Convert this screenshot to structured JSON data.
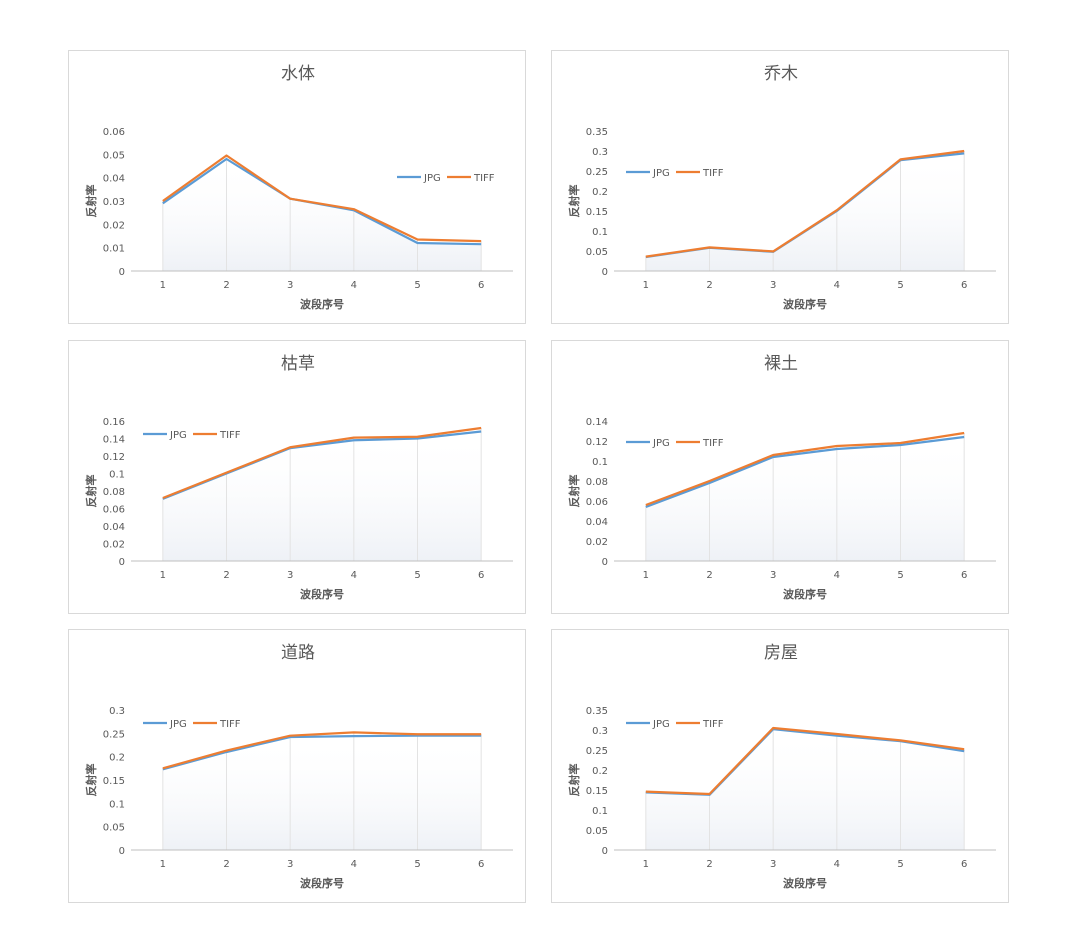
{
  "colors": {
    "jpg": "#5b9bd5",
    "tiff": "#ed7d31",
    "axis": "#bfbfbf",
    "text": "#595959",
    "title": "#595959",
    "fill": "#eef1f6"
  },
  "chart_data": [
    {
      "type": "line",
      "title": "水体",
      "xlabel": "波段序号",
      "ylabel": "反射率",
      "x": [
        "1",
        "2",
        "3",
        "4",
        "5",
        "6"
      ],
      "ylim": [
        0,
        0.06
      ],
      "yticks": [
        "0",
        "0.01",
        "0.02",
        "0.03",
        "0.04",
        "0.05",
        "0.06"
      ],
      "legend": "right",
      "series": [
        {
          "name": "JPG",
          "values": [
            0.029,
            0.048,
            0.031,
            0.026,
            0.012,
            0.0115
          ]
        },
        {
          "name": "TIFF",
          "values": [
            0.03,
            0.0495,
            0.031,
            0.0265,
            0.0135,
            0.0128
          ]
        }
      ]
    },
    {
      "type": "line",
      "title": "乔木",
      "xlabel": "波段序号",
      "ylabel": "反射率",
      "x": [
        "1",
        "2",
        "3",
        "4",
        "5",
        "6"
      ],
      "ylim": [
        0,
        0.35
      ],
      "yticks": [
        "0",
        "0.05",
        "0.1",
        "0.15",
        "0.2",
        "0.25",
        "0.3",
        "0.35"
      ],
      "legend": "left",
      "series": [
        {
          "name": "JPG",
          "values": [
            0.035,
            0.058,
            0.048,
            0.15,
            0.277,
            0.294
          ]
        },
        {
          "name": "TIFF",
          "values": [
            0.036,
            0.059,
            0.049,
            0.152,
            0.279,
            0.3
          ]
        }
      ]
    },
    {
      "type": "line",
      "title": "枯草",
      "xlabel": "波段序号",
      "ylabel": "反射率",
      "x": [
        "1",
        "2",
        "3",
        "4",
        "5",
        "6"
      ],
      "ylim": [
        0,
        0.16
      ],
      "yticks": [
        "0",
        "0.02",
        "0.04",
        "0.06",
        "0.08",
        "0.1",
        "0.12",
        "0.14",
        "0.16"
      ],
      "legend": "left",
      "series": [
        {
          "name": "JPG",
          "values": [
            0.071,
            0.1,
            0.129,
            0.138,
            0.14,
            0.148
          ]
        },
        {
          "name": "TIFF",
          "values": [
            0.072,
            0.101,
            0.13,
            0.141,
            0.142,
            0.152
          ]
        }
      ]
    },
    {
      "type": "line",
      "title": "裸土",
      "xlabel": "波段序号",
      "ylabel": "反射率",
      "x": [
        "1",
        "2",
        "3",
        "4",
        "5",
        "6"
      ],
      "ylim": [
        0,
        0.14
      ],
      "yticks": [
        "0",
        "0.02",
        "0.04",
        "0.06",
        "0.08",
        "0.1",
        "0.12",
        "0.14"
      ],
      "legend": "left",
      "series": [
        {
          "name": "JPG",
          "values": [
            0.054,
            0.078,
            0.104,
            0.112,
            0.116,
            0.124
          ]
        },
        {
          "name": "TIFF",
          "values": [
            0.056,
            0.08,
            0.106,
            0.115,
            0.118,
            0.128
          ]
        }
      ]
    },
    {
      "type": "line",
      "title": "道路",
      "xlabel": "波段序号",
      "ylabel": "反射率",
      "x": [
        "1",
        "2",
        "3",
        "4",
        "5",
        "6"
      ],
      "ylim": [
        0,
        0.3
      ],
      "yticks": [
        "0",
        "0.05",
        "0.1",
        "0.15",
        "0.2",
        "0.25",
        "0.3"
      ],
      "legend": "left",
      "series": [
        {
          "name": "JPG",
          "values": [
            0.173,
            0.21,
            0.242,
            0.244,
            0.245,
            0.245
          ]
        },
        {
          "name": "TIFF",
          "values": [
            0.175,
            0.213,
            0.245,
            0.252,
            0.248,
            0.248
          ]
        }
      ]
    },
    {
      "type": "line",
      "title": "房屋",
      "xlabel": "波段序号",
      "ylabel": "反射率",
      "x": [
        "1",
        "2",
        "3",
        "4",
        "5",
        "6"
      ],
      "ylim": [
        0,
        0.35
      ],
      "yticks": [
        "0",
        "0.05",
        "0.1",
        "0.15",
        "0.2",
        "0.25",
        "0.3",
        "0.35"
      ],
      "legend": "left",
      "series": [
        {
          "name": "JPG",
          "values": [
            0.144,
            0.138,
            0.302,
            0.286,
            0.272,
            0.247
          ]
        },
        {
          "name": "TIFF",
          "values": [
            0.146,
            0.14,
            0.305,
            0.29,
            0.274,
            0.252
          ]
        }
      ]
    }
  ]
}
